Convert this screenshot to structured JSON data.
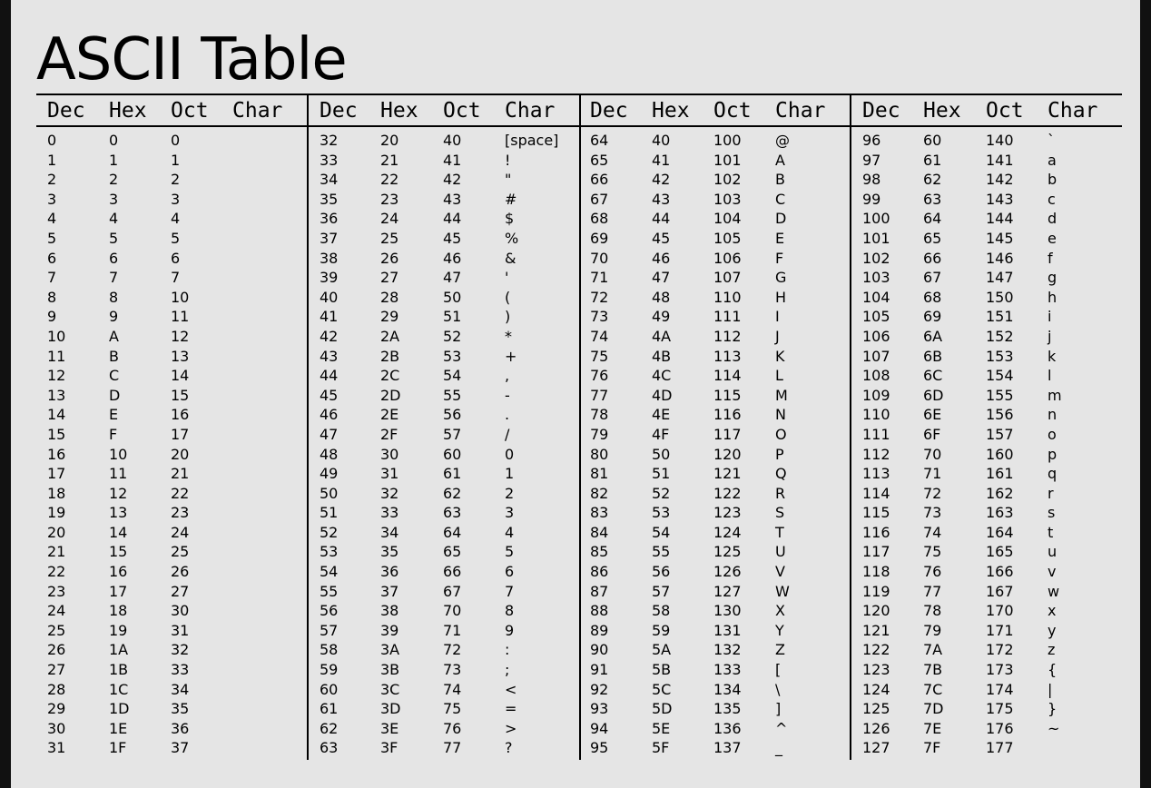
{
  "title": "ASCII Table",
  "headers": [
    "Dec",
    "Hex",
    "Oct",
    "Char"
  ],
  "groups": [
    {
      "dec": [
        "0",
        "1",
        "2",
        "3",
        "4",
        "5",
        "6",
        "7",
        "8",
        "9",
        "10",
        "11",
        "12",
        "13",
        "14",
        "15",
        "16",
        "17",
        "18",
        "19",
        "20",
        "21",
        "22",
        "23",
        "24",
        "25",
        "26",
        "27",
        "28",
        "29",
        "30",
        "31"
      ],
      "hex": [
        "0",
        "1",
        "2",
        "3",
        "4",
        "5",
        "6",
        "7",
        "8",
        "9",
        "A",
        "B",
        "C",
        "D",
        "E",
        "F",
        "10",
        "11",
        "12",
        "13",
        "14",
        "15",
        "16",
        "17",
        "18",
        "19",
        "1A",
        "1B",
        "1C",
        "1D",
        "1E",
        "1F"
      ],
      "oct": [
        "0",
        "1",
        "2",
        "3",
        "4",
        "5",
        "6",
        "7",
        "10",
        "11",
        "12",
        "13",
        "14",
        "15",
        "16",
        "17",
        "20",
        "21",
        "22",
        "23",
        "24",
        "25",
        "26",
        "27",
        "30",
        "31",
        "32",
        "33",
        "34",
        "35",
        "36",
        "37"
      ],
      "char": [
        "",
        "",
        "",
        "",
        "",
        "",
        "",
        "",
        "",
        "",
        "",
        "",
        "",
        "",
        "",
        "",
        "",
        "",
        "",
        "",
        "",
        "",
        "",
        "",
        "",
        "",
        "",
        "",
        "",
        "",
        "",
        ""
      ]
    },
    {
      "dec": [
        "32",
        "33",
        "34",
        "35",
        "36",
        "37",
        "38",
        "39",
        "40",
        "41",
        "42",
        "43",
        "44",
        "45",
        "46",
        "47",
        "48",
        "49",
        "50",
        "51",
        "52",
        "53",
        "54",
        "55",
        "56",
        "57",
        "58",
        "59",
        "60",
        "61",
        "62",
        "63"
      ],
      "hex": [
        "20",
        "21",
        "22",
        "23",
        "24",
        "25",
        "26",
        "27",
        "28",
        "29",
        "2A",
        "2B",
        "2C",
        "2D",
        "2E",
        "2F",
        "30",
        "31",
        "32",
        "33",
        "34",
        "35",
        "36",
        "37",
        "38",
        "39",
        "3A",
        "3B",
        "3C",
        "3D",
        "3E",
        "3F"
      ],
      "oct": [
        "40",
        "41",
        "42",
        "43",
        "44",
        "45",
        "46",
        "47",
        "50",
        "51",
        "52",
        "53",
        "54",
        "55",
        "56",
        "57",
        "60",
        "61",
        "62",
        "63",
        "64",
        "65",
        "66",
        "67",
        "70",
        "71",
        "72",
        "73",
        "74",
        "75",
        "76",
        "77"
      ],
      "char": [
        "[space]",
        "!",
        "\"",
        "#",
        "$",
        "%",
        "&",
        "'",
        "(",
        ")",
        "*",
        "+",
        ",",
        "-",
        ".",
        "/",
        "0",
        "1",
        "2",
        "3",
        "4",
        "5",
        "6",
        "7",
        "8",
        "9",
        ":",
        ";",
        "<",
        "=",
        ">",
        "?"
      ]
    },
    {
      "dec": [
        "64",
        "65",
        "66",
        "67",
        "68",
        "69",
        "70",
        "71",
        "72",
        "73",
        "74",
        "75",
        "76",
        "77",
        "78",
        "79",
        "80",
        "81",
        "82",
        "83",
        "84",
        "85",
        "86",
        "87",
        "88",
        "89",
        "90",
        "91",
        "92",
        "93",
        "94",
        "95"
      ],
      "hex": [
        "40",
        "41",
        "42",
        "43",
        "44",
        "45",
        "46",
        "47",
        "48",
        "49",
        "4A",
        "4B",
        "4C",
        "4D",
        "4E",
        "4F",
        "50",
        "51",
        "52",
        "53",
        "54",
        "55",
        "56",
        "57",
        "58",
        "59",
        "5A",
        "5B",
        "5C",
        "5D",
        "5E",
        "5F"
      ],
      "oct": [
        "100",
        "101",
        "102",
        "103",
        "104",
        "105",
        "106",
        "107",
        "110",
        "111",
        "112",
        "113",
        "114",
        "115",
        "116",
        "117",
        "120",
        "121",
        "122",
        "123",
        "124",
        "125",
        "126",
        "127",
        "130",
        "131",
        "132",
        "133",
        "134",
        "135",
        "136",
        "137"
      ],
      "char": [
        "@",
        "A",
        "B",
        "C",
        "D",
        "E",
        "F",
        "G",
        "H",
        "I",
        "J",
        "K",
        "L",
        "M",
        "N",
        "O",
        "P",
        "Q",
        "R",
        "S",
        "T",
        "U",
        "V",
        "W",
        "X",
        "Y",
        "Z",
        "[",
        "\\",
        "]",
        "^",
        "_"
      ]
    },
    {
      "dec": [
        "96",
        "97",
        "98",
        "99",
        "100",
        "101",
        "102",
        "103",
        "104",
        "105",
        "106",
        "107",
        "108",
        "109",
        "110",
        "111",
        "112",
        "113",
        "114",
        "115",
        "116",
        "117",
        "118",
        "119",
        "120",
        "121",
        "122",
        "123",
        "124",
        "125",
        "126",
        "127"
      ],
      "hex": [
        "60",
        "61",
        "62",
        "63",
        "64",
        "65",
        "66",
        "67",
        "68",
        "69",
        "6A",
        "6B",
        "6C",
        "6D",
        "6E",
        "6F",
        "70",
        "71",
        "72",
        "73",
        "74",
        "75",
        "76",
        "77",
        "78",
        "79",
        "7A",
        "7B",
        "7C",
        "7D",
        "7E",
        "7F"
      ],
      "oct": [
        "140",
        "141",
        "142",
        "143",
        "144",
        "145",
        "146",
        "147",
        "150",
        "151",
        "152",
        "153",
        "154",
        "155",
        "156",
        "157",
        "160",
        "161",
        "162",
        "163",
        "164",
        "165",
        "166",
        "167",
        "170",
        "171",
        "172",
        "173",
        "174",
        "175",
        "176",
        "177"
      ],
      "char": [
        "`",
        "a",
        "b",
        "c",
        "d",
        "e",
        "f",
        "g",
        "h",
        "i",
        "j",
        "k",
        "l",
        "m",
        "n",
        "o",
        "p",
        "q",
        "r",
        "s",
        "t",
        "u",
        "v",
        "w",
        "x",
        "y",
        "z",
        "{",
        "|",
        "}",
        "~",
        ""
      ]
    }
  ]
}
